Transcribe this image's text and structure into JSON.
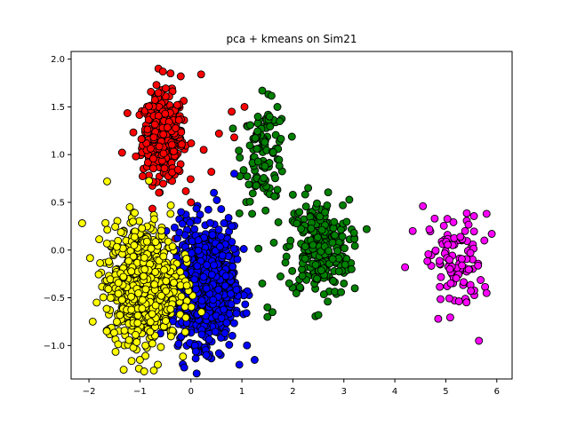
{
  "chart_data": {
    "type": "scatter",
    "title": "pca + kmeans on Sim21",
    "xlabel": "",
    "ylabel": "",
    "xlim": [
      -2.35,
      6.3
    ],
    "ylim": [
      -1.35,
      2.08
    ],
    "xticks": [
      -2,
      -1,
      0,
      1,
      2,
      3,
      4,
      5,
      6
    ],
    "yticks": [
      -1.0,
      -0.5,
      0.0,
      0.5,
      1.0,
      1.5,
      2.0
    ],
    "ytick_labels": [
      "−1.0",
      "−0.5",
      "0.0",
      "0.5",
      "1.0",
      "1.5",
      "2.0"
    ],
    "xtick_labels": [
      "−2",
      "−1",
      "0",
      "1",
      "2",
      "3",
      "4",
      "5",
      "6"
    ],
    "grid": false,
    "series": [
      {
        "color": "#ff0000",
        "clusters": [
          {
            "count": 420,
            "cx": -0.55,
            "cy": 1.18,
            "sx": 0.2,
            "sy": 0.22
          }
        ],
        "points": [
          [
            -0.55,
            1.87
          ],
          [
            -0.4,
            1.85
          ],
          [
            -0.2,
            1.82
          ],
          [
            0.2,
            1.84
          ],
          [
            -1.35,
            1.02
          ],
          [
            0.8,
            1.45
          ],
          [
            1.05,
            1.5
          ],
          [
            1.1,
            1.3
          ],
          [
            0.4,
            0.82
          ],
          [
            0.25,
            1.05
          ],
          [
            -0.3,
            0.12
          ],
          [
            0.0,
            0.5
          ],
          [
            0.55,
            1.22
          ],
          [
            0.85,
            1.18
          ]
        ]
      },
      {
        "color": "#008000",
        "clusters": [
          {
            "count": 110,
            "cx": 1.45,
            "cy": 1.02,
            "sx": 0.22,
            "sy": 0.25
          },
          {
            "count": 260,
            "cx": 2.5,
            "cy": 0.02,
            "sx": 0.3,
            "sy": 0.25
          }
        ],
        "points": [
          [
            1.4,
            1.67
          ],
          [
            1.2,
            0.38
          ],
          [
            1.4,
            -0.35
          ],
          [
            1.5,
            -0.6
          ],
          [
            1.5,
            -0.7
          ],
          [
            1.6,
            -0.65
          ],
          [
            3.2,
            0.18
          ],
          [
            3.15,
            -0.2
          ],
          [
            3.0,
            -0.35
          ],
          [
            2.5,
            -0.68
          ],
          [
            2.3,
            0.65
          ],
          [
            2.0,
            0.58
          ]
        ]
      },
      {
        "color": "#ff00ff",
        "clusters": [
          {
            "count": 100,
            "cx": 5.2,
            "cy": -0.15,
            "sx": 0.25,
            "sy": 0.25
          }
        ],
        "points": [
          [
            4.55,
            0.46
          ],
          [
            4.2,
            -0.18
          ],
          [
            4.35,
            0.2
          ],
          [
            5.9,
            0.17
          ],
          [
            5.8,
            0.38
          ],
          [
            4.85,
            -0.72
          ],
          [
            5.65,
            -0.95
          ],
          [
            5.8,
            -0.45
          ]
        ]
      },
      {
        "color": "#0000ff",
        "clusters": [
          {
            "count": 900,
            "cx": 0.25,
            "cy": -0.35,
            "sx": 0.3,
            "sy": 0.3
          }
        ],
        "points": [
          [
            0.45,
            0.6
          ],
          [
            0.85,
            0.8
          ],
          [
            0.95,
            -1.2
          ],
          [
            1.25,
            -1.15
          ],
          [
            0.3,
            -1.1
          ],
          [
            0.55,
            -1.08
          ],
          [
            0.8,
            0.25
          ]
        ]
      },
      {
        "color": "#ffff00",
        "clusters": [
          {
            "count": 800,
            "cx": -0.95,
            "cy": -0.35,
            "sx": 0.35,
            "sy": 0.3
          }
        ],
        "points": [
          [
            -1.2,
            0.45
          ],
          [
            -1.85,
            -0.55
          ],
          [
            -1.65,
            -0.85
          ],
          [
            -0.65,
            -1.2
          ],
          [
            -1.0,
            -1.15
          ],
          [
            -0.4,
            0.38
          ]
        ]
      }
    ]
  }
}
